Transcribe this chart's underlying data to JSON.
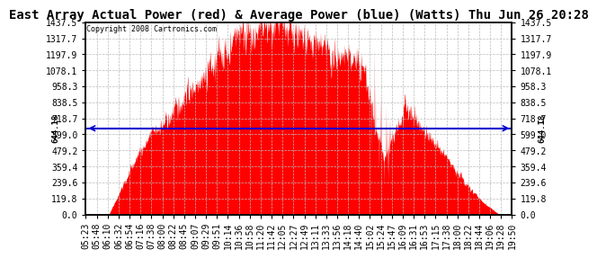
{
  "title": "East Array Actual Power (red) & Average Power (blue) (Watts) Thu Jun 26 20:28",
  "copyright": "Copyright 2008 Cartronics.com",
  "avg_power": 644.18,
  "y_max": 1437.5,
  "y_min": 0.0,
  "y_ticks": [
    0.0,
    119.8,
    239.6,
    359.4,
    479.2,
    599.0,
    718.7,
    838.5,
    958.3,
    1078.1,
    1197.9,
    1317.7,
    1437.5
  ],
  "background_color": "#ffffff",
  "plot_bg_color": "#ffffff",
  "grid_color": "#bbbbbb",
  "area_color": "#ff0000",
  "line_color": "#0000cc",
  "title_fontsize": 10,
  "tick_fontsize": 7,
  "x_labels": [
    "05:23",
    "05:48",
    "06:10",
    "06:32",
    "06:54",
    "07:16",
    "07:38",
    "08:00",
    "08:22",
    "08:45",
    "09:07",
    "09:29",
    "09:51",
    "10:14",
    "10:36",
    "10:58",
    "11:20",
    "11:42",
    "12:05",
    "12:27",
    "12:49",
    "13:11",
    "13:33",
    "13:56",
    "14:18",
    "14:40",
    "15:02",
    "15:24",
    "15:47",
    "16:09",
    "16:31",
    "16:53",
    "17:15",
    "17:38",
    "18:00",
    "18:22",
    "18:44",
    "19:06",
    "19:28",
    "19:50"
  ]
}
